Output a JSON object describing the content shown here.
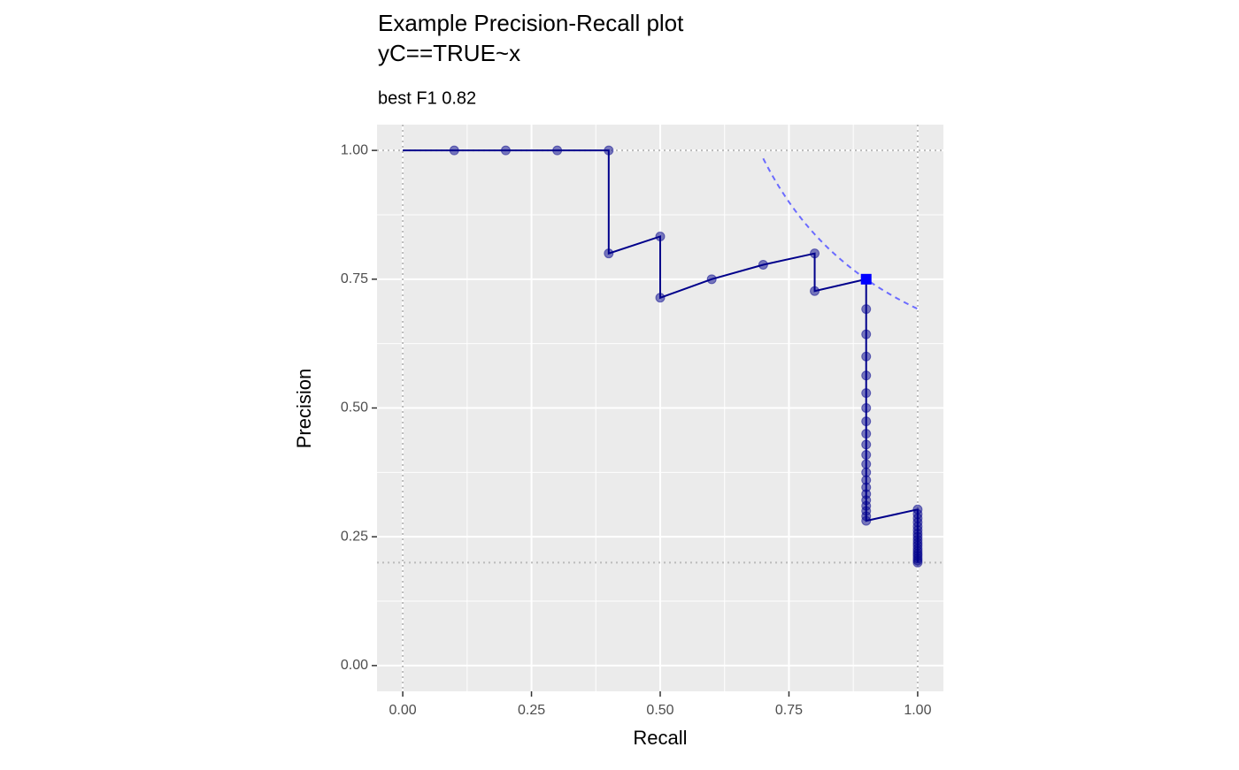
{
  "chart_data": {
    "type": "pr",
    "title": "Example Precision-Recall plot",
    "title_line2": "yC==TRUE~x",
    "subtitle": "best F1 0.82",
    "x_label": "Recall",
    "y_label": "Precision",
    "xlim": [
      -0.05,
      1.05
    ],
    "ylim": [
      -0.05,
      1.05
    ],
    "xticks": [
      {
        "value": 0,
        "label": "0.00"
      },
      {
        "value": 0.25,
        "label": "0.25"
      },
      {
        "value": 0.5,
        "label": "0.50"
      },
      {
        "value": 0.75,
        "label": "0.75"
      },
      {
        "value": 1,
        "label": "1.00"
      }
    ],
    "yticks": [
      {
        "value": 0,
        "label": "0.00"
      },
      {
        "value": 0.25,
        "label": "0.25"
      },
      {
        "value": 0.5,
        "label": "0.50"
      },
      {
        "value": 0.75,
        "label": "0.75"
      },
      {
        "value": 1,
        "label": "1.00"
      }
    ],
    "minor_breaks": [
      0.125,
      0.375,
      0.625,
      0.875
    ],
    "grid": true,
    "line_start": {
      "x": 0,
      "y": 1
    },
    "line_color": "#00008b",
    "point_color": "#00008b",
    "points": {
      "x": [
        0.1,
        0.2,
        0.3,
        0.4,
        0.4,
        0.5,
        0.5,
        0.6,
        0.7,
        0.8,
        0.8,
        0.9,
        0.9,
        0.9,
        0.9,
        0.9,
        0.9,
        0.9,
        0.9,
        0.9,
        0.9,
        0.9,
        0.9,
        0.9,
        0.9,
        0.9,
        0.9,
        0.9,
        0.9,
        0.9,
        0.9,
        0.9,
        1,
        1,
        1,
        1,
        1,
        1,
        1,
        1,
        1,
        1,
        1,
        1,
        1,
        1,
        1,
        1,
        1,
        1
      ],
      "y": [
        1,
        1,
        1,
        1,
        0.8,
        0.833,
        0.714,
        0.75,
        0.778,
        0.8,
        0.727,
        0.75,
        0.692,
        0.643,
        0.6,
        0.563,
        0.529,
        0.5,
        0.474,
        0.45,
        0.429,
        0.409,
        0.391,
        0.375,
        0.36,
        0.346,
        0.333,
        0.321,
        0.31,
        0.3,
        0.29,
        0.281,
        0.303,
        0.294,
        0.286,
        0.278,
        0.27,
        0.263,
        0.256,
        0.25,
        0.244,
        0.238,
        0.233,
        0.227,
        0.222,
        0.217,
        0.213,
        0.208,
        0.204,
        0.2
      ]
    },
    "best": {
      "x": 0.9,
      "y": 0.75,
      "color": "#0000ff"
    },
    "iso_f1_recall_range": [
      0.7,
      1
    ],
    "iso_f1_color": "#6b6bff",
    "reference_lines": {
      "h": [
        1,
        0.2
      ],
      "v": [
        0,
        1
      ]
    }
  }
}
